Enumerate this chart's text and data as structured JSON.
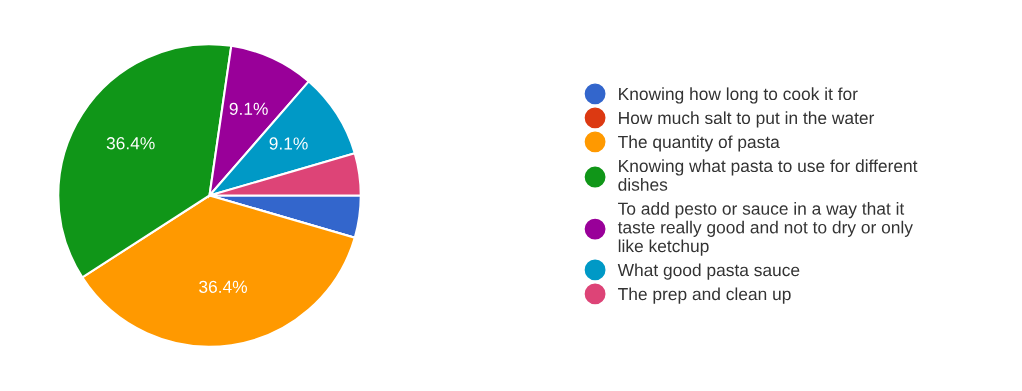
{
  "chart_data": {
    "type": "pie",
    "categories": [
      "Knowing how long to cook it for",
      "How much salt to put in the water",
      "The quantity of pasta",
      "Knowing what pasta to use for different\ndishes",
      "To add pesto or sauce in a way that it\ntaste really good and not to dry or only\nlike ketchup",
      "What good pasta sauce",
      "The prep and clean up"
    ],
    "values": [
      4.5,
      0,
      36.4,
      36.4,
      9.1,
      9.1,
      4.5
    ],
    "colors": [
      "#3366cc",
      "#dc3912",
      "#ff9900",
      "#109618",
      "#990099",
      "#0099c6",
      "#dd4477"
    ],
    "value_labels": [
      null,
      null,
      "36.4%",
      "36.4%",
      "9.1%",
      "9.1%",
      null
    ],
    "legend": "right"
  }
}
